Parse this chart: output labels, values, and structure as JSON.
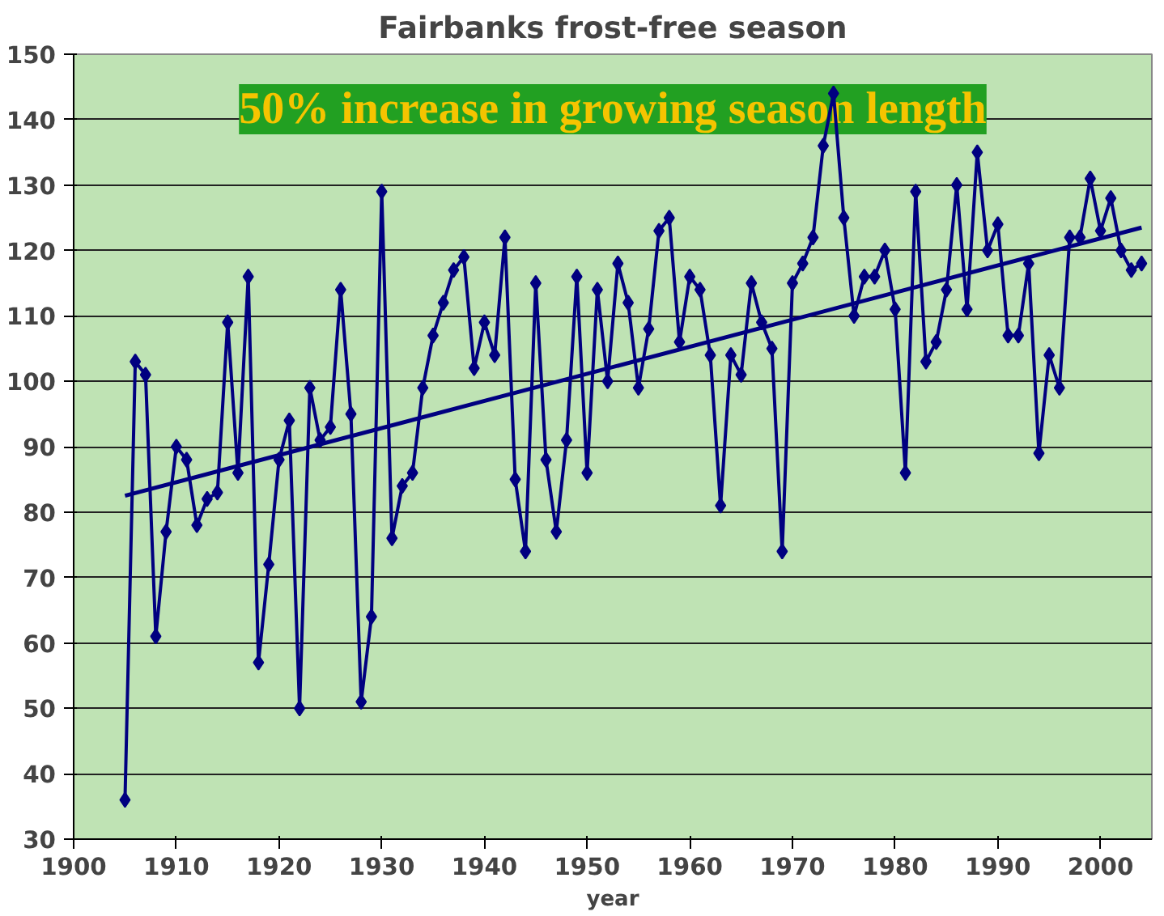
{
  "chart_data": {
    "type": "line",
    "title": "Fairbanks frost-free season",
    "xlabel": "year",
    "annotations": [
      "50% increase in growing season length"
    ],
    "xlim": [
      1900,
      2005
    ],
    "xticks": [
      1900,
      1910,
      1920,
      1930,
      1940,
      1950,
      1960,
      1970,
      1980,
      1990,
      2000
    ],
    "ylim": [
      30,
      150
    ],
    "yticks": [
      30,
      40,
      50,
      60,
      70,
      80,
      90,
      100,
      110,
      120,
      130,
      140,
      150
    ],
    "grid": "y",
    "marker": "diamond",
    "line_style": "solid",
    "x": [
      1905,
      1906,
      1907,
      1908,
      1909,
      1910,
      1911,
      1912,
      1913,
      1914,
      1915,
      1916,
      1917,
      1918,
      1919,
      1920,
      1921,
      1922,
      1923,
      1924,
      1925,
      1926,
      1927,
      1928,
      1929,
      1930,
      1931,
      1932,
      1933,
      1934,
      1935,
      1936,
      1937,
      1938,
      1939,
      1940,
      1941,
      1942,
      1943,
      1944,
      1945,
      1946,
      1947,
      1948,
      1949,
      1950,
      1951,
      1952,
      1953,
      1954,
      1955,
      1956,
      1957,
      1958,
      1959,
      1960,
      1961,
      1962,
      1963,
      1964,
      1965,
      1966,
      1967,
      1968,
      1969,
      1970,
      1971,
      1972,
      1973,
      1974,
      1975,
      1976,
      1977,
      1978,
      1979,
      1980,
      1981,
      1982,
      1983,
      1984,
      1985,
      1986,
      1987,
      1988,
      1989,
      1990,
      1991,
      1992,
      1993,
      1994,
      1995,
      1996,
      1997,
      1998,
      1999,
      2000,
      2001,
      2002,
      2003,
      2004
    ],
    "series": [
      {
        "color": "#000080",
        "values": [
          36,
          103,
          101,
          61,
          77,
          90,
          88,
          78,
          82,
          83,
          109,
          86,
          116,
          57,
          72,
          88,
          94,
          50,
          99,
          91,
          93,
          114,
          95,
          51,
          64,
          129,
          76,
          84,
          86,
          99,
          107,
          112,
          117,
          119,
          102,
          109,
          104,
          122,
          85,
          74,
          115,
          88,
          77,
          91,
          116,
          86,
          114,
          100,
          118,
          112,
          99,
          108,
          123,
          125,
          106,
          116,
          114,
          104,
          81,
          104,
          101,
          115,
          109,
          105,
          74,
          115,
          118,
          122,
          136,
          144,
          125,
          110,
          116,
          116,
          120,
          111,
          86,
          129,
          103,
          106,
          114,
          130,
          111,
          135,
          120,
          124,
          107,
          107,
          118,
          89,
          104,
          99,
          122,
          122,
          131,
          123,
          128,
          120,
          117,
          118
        ]
      },
      {
        "type": "line",
        "marker": "none",
        "color": "#000080",
        "x": [
          1905,
          2004
        ],
        "values": [
          82.5,
          123.5
        ]
      }
    ]
  }
}
